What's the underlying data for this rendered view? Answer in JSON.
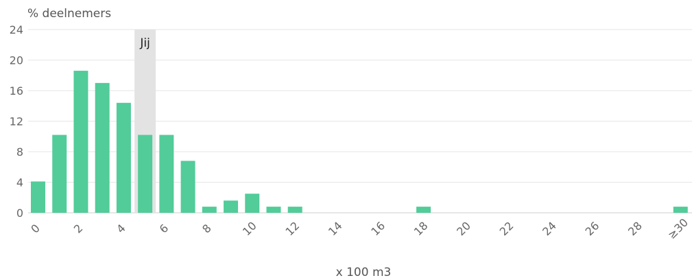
{
  "chart_data": {
    "type": "bar",
    "ylabel": "% deelnemers",
    "xlabel": "x 100 m3",
    "ylim": [
      0,
      24
    ],
    "yticks": [
      0,
      4,
      8,
      12,
      16,
      20,
      24
    ],
    "categories": [
      "0",
      "1",
      "2",
      "3",
      "4",
      "5",
      "6",
      "7",
      "8",
      "9",
      "10",
      "11",
      "12",
      "13",
      "14",
      "15",
      "16",
      "17",
      "18",
      "19",
      "20",
      "21",
      "22",
      "23",
      "24",
      "25",
      "26",
      "27",
      "28",
      "29",
      "≥30"
    ],
    "xtick_labels": [
      "0",
      "2",
      "4",
      "6",
      "8",
      "10",
      "12",
      "14",
      "16",
      "18",
      "20",
      "22",
      "24",
      "26",
      "28",
      "≥30"
    ],
    "values": [
      4.1,
      10.2,
      18.6,
      17.0,
      14.4,
      10.2,
      10.2,
      6.8,
      0.8,
      1.6,
      2.5,
      0.8,
      0.8,
      0,
      0,
      0,
      0,
      0,
      0.8,
      0,
      0,
      0,
      0,
      0,
      0,
      0,
      0,
      0,
      0,
      0,
      0.8
    ],
    "highlight": {
      "category": "5",
      "label": "Jij"
    },
    "grid": true,
    "colors": {
      "bar": "#52cc99",
      "highlight_band": "#e3e3e3",
      "grid": "#e6e6e6",
      "axis": "#cccccc"
    }
  }
}
